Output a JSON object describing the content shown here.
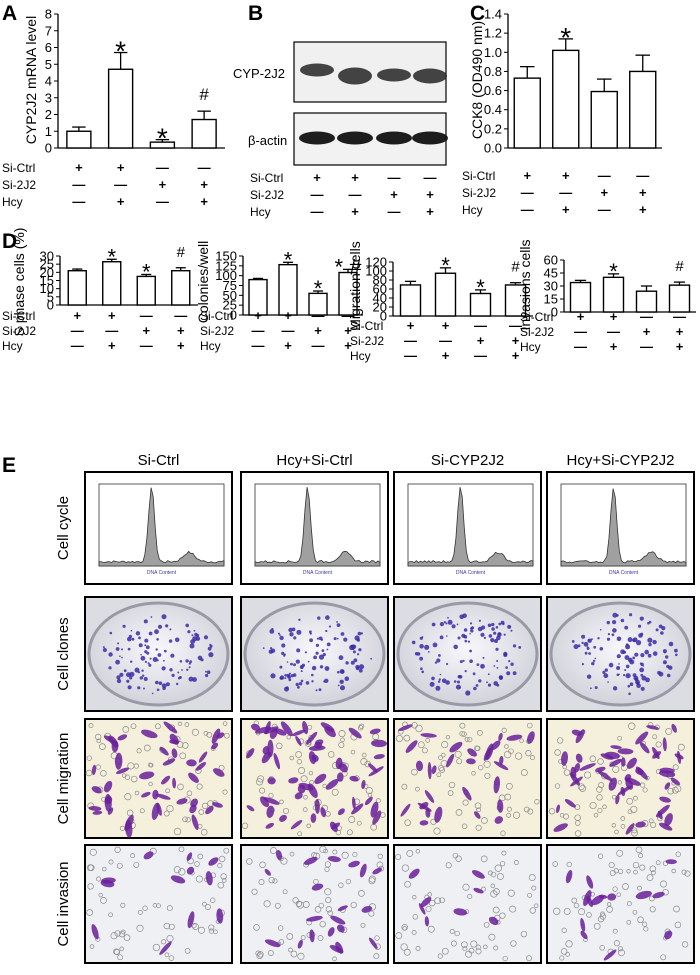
{
  "panel_letters": {
    "A": "A",
    "B": "B",
    "C": "C",
    "D": "D",
    "E": "E"
  },
  "condition_labels": {
    "si_ctrl": "Si-Ctrl",
    "si_2j2": "Si-2J2",
    "hcy": "Hcy"
  },
  "condition_signs": [
    [
      "+",
      "+",
      "—",
      "—"
    ],
    [
      "—",
      "—",
      "+",
      "+"
    ],
    [
      "—",
      "+",
      "—",
      "+"
    ]
  ],
  "blot": {
    "bands": [
      "CYP-2J2",
      "β-actin"
    ]
  },
  "images_grid": {
    "columns": [
      "Si-Ctrl",
      "Hcy+Si-Ctrl",
      "Si-CYP2J2",
      "Hcy+Si-CYP2J2"
    ],
    "rows": [
      "Cell cycle",
      "Cell clones",
      "Cell migration",
      "Cell invasion"
    ],
    "histogram_xlabel": "DNA Content"
  },
  "colors": {
    "bar_fill": "#ffffff",
    "stroke": "#000000",
    "stain": "#6a1f9a",
    "clone_stain": "#3b2ca8",
    "histogram_fill": "#a0a0a0"
  },
  "chart_data": [
    {
      "id": "A",
      "type": "bar",
      "ylabel": "CYP2J2 mRNA  level",
      "ylim": [
        0,
        8
      ],
      "ticks": [
        0,
        1,
        2,
        3,
        4,
        5,
        6,
        7,
        8
      ],
      "categories": [
        "Si-Ctrl",
        "Hcy+Si-Ctrl",
        "Si-2J2",
        "Hcy+Si-2J2"
      ],
      "values": [
        1.0,
        4.7,
        0.35,
        1.7
      ],
      "errors": [
        0.25,
        1.0,
        0.15,
        0.5
      ],
      "annotations": [
        "",
        "*",
        "*",
        "#"
      ]
    },
    {
      "id": "C",
      "type": "bar",
      "ylabel": "CCK8 (OD490 nm)",
      "ylim": [
        0,
        1.4
      ],
      "ticks": [
        0,
        0.2,
        0.4,
        0.6,
        0.8,
        1.0,
        1.2,
        1.4
      ],
      "tick_labels": [
        "0.0",
        "0.2",
        "0.4",
        "0.6",
        "0.8",
        "1.0",
        "1.2",
        "1.4"
      ],
      "categories": [
        "Si-Ctrl",
        "Hcy+Si-Ctrl",
        "Si-2J2",
        "Hcy+Si-2J2"
      ],
      "values": [
        0.73,
        1.02,
        0.59,
        0.8
      ],
      "errors": [
        0.12,
        0.12,
        0.13,
        0.17
      ],
      "annotations": [
        "",
        "*",
        "",
        ""
      ]
    },
    {
      "id": "D1",
      "type": "bar",
      "ylabel": "S phase cells (%)",
      "ylim": [
        0,
        30
      ],
      "ticks": [
        0,
        5,
        10,
        15,
        20,
        25,
        30
      ],
      "categories": [
        "Si-Ctrl",
        "Hcy+Si-Ctrl",
        "Si-2J2",
        "Hcy+Si-2J2"
      ],
      "values": [
        21,
        26.5,
        17.5,
        21
      ],
      "errors": [
        1,
        1.5,
        1.2,
        1.8
      ],
      "annotations": [
        "",
        "*",
        "*",
        "#"
      ]
    },
    {
      "id": "D2",
      "type": "bar",
      "ylabel": "Colonies/well",
      "ylim": [
        0,
        150
      ],
      "ticks": [
        0,
        25,
        50,
        75,
        100,
        125,
        150
      ],
      "categories": [
        "Si-Ctrl",
        "Hcy+Si-Ctrl",
        "Si-2J2",
        "Hcy+Si-2J2"
      ],
      "values": [
        90,
        128,
        55,
        108
      ],
      "errors": [
        3,
        6,
        6,
        8
      ],
      "annotations": [
        "",
        "*",
        "*",
        "* #"
      ]
    },
    {
      "id": "D3",
      "type": "bar",
      "ylabel": "Migration cells",
      "ylim": [
        0,
        120
      ],
      "ticks": [
        0,
        20,
        40,
        60,
        80,
        100,
        120
      ],
      "categories": [
        "Si-Ctrl",
        "Hcy+Si-Ctrl",
        "Si-2J2",
        "Hcy+Si-2J2"
      ],
      "values": [
        69,
        95,
        50,
        69
      ],
      "errors": [
        8,
        12,
        8,
        5
      ],
      "annotations": [
        "",
        "*",
        "*",
        "#"
      ]
    },
    {
      "id": "D4",
      "type": "bar",
      "ylabel": "Invasions cells",
      "ylim": [
        0,
        60
      ],
      "ticks": [
        0,
        15,
        30,
        45,
        60
      ],
      "categories": [
        "Si-Ctrl",
        "Hcy+Si-Ctrl",
        "Si-2J2",
        "Hcy+Si-2J2"
      ],
      "values": [
        34,
        40,
        24,
        31
      ],
      "errors": [
        2.5,
        4,
        6,
        3.5
      ],
      "annotations": [
        "",
        "*",
        "",
        "#"
      ]
    }
  ]
}
